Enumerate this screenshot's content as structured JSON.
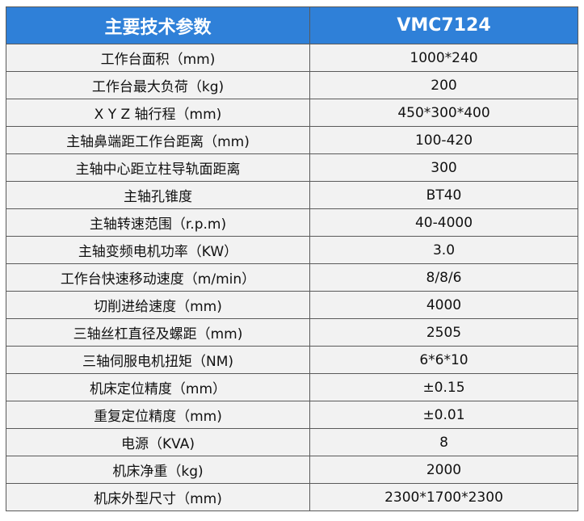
{
  "table": {
    "header": [
      "主要技术参数",
      "VMC7124"
    ],
    "rows": [
      [
        "工作台面积（mm)",
        "1000*240"
      ],
      [
        "工作台最大负荷（kg)",
        "200"
      ],
      [
        "X Y Z 轴行程（mm)",
        "450*300*400"
      ],
      [
        "主轴鼻端距工作台距离（mm)",
        "100-420"
      ],
      [
        "主轴中心距立柱导轨面距离",
        "300"
      ],
      [
        "主轴孔锥度",
        "BT40"
      ],
      [
        "主轴转速范围（r.p.m)",
        "40-4000"
      ],
      [
        "主轴变频电机功率（KW）",
        "3.0"
      ],
      [
        "工作台快速移动速度（m/min）",
        "8/8/6"
      ],
      [
        "切削进给速度（mm)",
        "4000"
      ],
      [
        "三轴丝杠直径及螺距（mm)",
        "2505"
      ],
      [
        "三轴伺服电机扭矩（NM)",
        "6*6*10"
      ],
      [
        "机床定位精度（mm）",
        "±0.15"
      ],
      [
        "重复定位精度（mm)",
        "±0.01"
      ],
      [
        "电源（KVA)",
        "8"
      ],
      [
        "机床净重（kg)",
        "2000"
      ],
      [
        "机床外型尺寸（mm)",
        "2300*1700*2300"
      ]
    ]
  }
}
